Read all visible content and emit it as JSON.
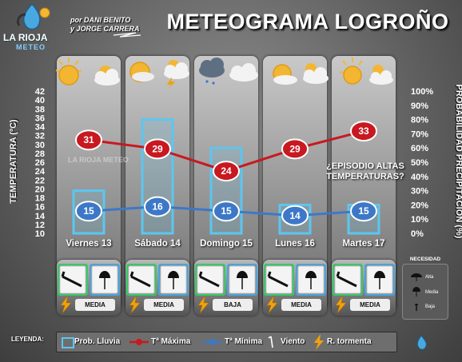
{
  "header": {
    "title": "METEOGRAMA LOGROÑO",
    "byline1": "por DANI BENITO",
    "byline2": "y JORGE CARRERA",
    "logo_text": "LA RIOJA",
    "logo_sub": "METEO",
    "watermark": "LA RIOJA METEO"
  },
  "chart_data": {
    "type": "bar",
    "categories": [
      "Viernes 13",
      "Sábado 14",
      "Domingo 15",
      "Lunes 16",
      "Martes 17"
    ],
    "ylabel": "TEMPERATURA (ºC)",
    "y2label": "PROBABILIDAD PRECIPITACIÓN (%)",
    "ylim": [
      10,
      42
    ],
    "y2lim": [
      0,
      100
    ],
    "y_ticks": [
      "42",
      "40",
      "38",
      "36",
      "34",
      "32",
      "30",
      "28",
      "26",
      "24",
      "22",
      "20",
      "18",
      "16",
      "14",
      "12",
      "10"
    ],
    "y2_ticks": [
      "100%",
      "90%",
      "80%",
      "70%",
      "60%",
      "50%",
      "40%",
      "30%",
      "20%",
      "10%",
      "0%"
    ],
    "series": [
      {
        "name": "Prob. Lluvia",
        "kind": "bar",
        "color": "#5cc6f0",
        "values": [
          30,
          80,
          60,
          20,
          20
        ]
      },
      {
        "name": "Tª Máxima",
        "kind": "line",
        "color": "#c81820",
        "values": [
          31,
          29,
          24,
          29,
          33
        ]
      },
      {
        "name": "Tª Mínima",
        "kind": "line",
        "color": "#3d78c8",
        "values": [
          15,
          16,
          15,
          14,
          15
        ]
      }
    ],
    "annotation": "¿EPISODIO ALTAS TEMPERATURAS?",
    "needs": [
      "MEDIA",
      "MEDIA",
      "BAJA",
      "MEDIA",
      "MEDIA"
    ],
    "storm": [
      true,
      true,
      true,
      true,
      true
    ],
    "need_legend": {
      "title": "NECESIDAD",
      "levels": [
        "Alta",
        "Media",
        "Baja"
      ]
    }
  },
  "legend": {
    "label": "LEYENDA:",
    "items": [
      "Prob. Lluvia",
      "Tª Máxima",
      "Tª Mínima",
      "Viento",
      "R. tormenta"
    ]
  }
}
